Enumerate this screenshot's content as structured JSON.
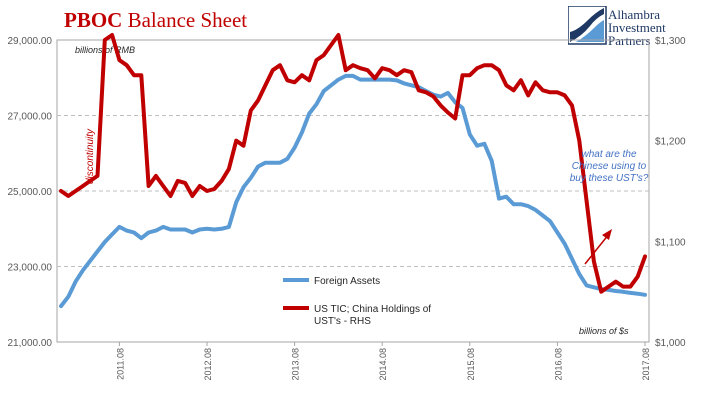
{
  "header": {
    "title_bold": "PBOC",
    "title_rest": " Balance Sheet",
    "logo_lines": [
      "Alhambra",
      "Investment",
      "Partners"
    ]
  },
  "colors": {
    "series_1": "#5b9bd5",
    "series_2": "#c00000",
    "grid": "#bfbfbf",
    "axis_text": "#595959",
    "annotation_blue": "#4472c4",
    "logo": "#1f3864"
  },
  "chart_data": {
    "type": "line",
    "x_labels": [
      "2011.08",
      "2012.08",
      "2013.08",
      "2014.08",
      "2015.08",
      "2016.08",
      "2017.08"
    ],
    "x_label_index": [
      8,
      20,
      32,
      44,
      56,
      68,
      80
    ],
    "left_axis": {
      "label": "billions of RMB",
      "ticks": [
        "21,000.00",
        "23,000.00",
        "25,000.00",
        "27,000.00",
        "29,000.00"
      ],
      "range": [
        21000,
        29000
      ]
    },
    "right_axis": {
      "label": "billions of $s",
      "ticks": [
        "$1,000",
        "$1,100",
        "$1,200",
        "$1,300"
      ],
      "range": [
        1000,
        1300
      ]
    },
    "grid": true,
    "legend_position": "bottom-center",
    "series": [
      {
        "name": "Foreign Assets",
        "axis": "left",
        "values": [
          21950,
          22200,
          22600,
          22900,
          23150,
          23400,
          23650,
          23850,
          24050,
          23950,
          23900,
          23750,
          23900,
          23950,
          24050,
          23980,
          23980,
          23980,
          23900,
          23980,
          24000,
          23980,
          24000,
          24050,
          24700,
          25100,
          25350,
          25650,
          25750,
          25750,
          25750,
          25850,
          26150,
          26550,
          27050,
          27300,
          27650,
          27800,
          27950,
          28050,
          28050,
          27950,
          27950,
          27950,
          27950,
          27950,
          27930,
          27850,
          27800,
          27750,
          27650,
          27550,
          27500,
          27600,
          27350,
          27200,
          26500,
          26200,
          26250,
          25800,
          24800,
          24850,
          24650,
          24650,
          24600,
          24500,
          24350,
          24200,
          23900,
          23600,
          23200,
          22800,
          22500,
          22450,
          22400,
          22380,
          22350,
          22330,
          22300,
          22280,
          22250
        ]
      },
      {
        "name": "US TIC; China Holdings of UST's - RHS",
        "axis": "right",
        "values": [
          1150,
          1145,
          1150,
          1155,
          1160,
          1165,
          1300,
          1305,
          1280,
          1275,
          1265,
          1265,
          1155,
          1165,
          1155,
          1145,
          1160,
          1158,
          1145,
          1155,
          1150,
          1152,
          1160,
          1172,
          1200,
          1195,
          1230,
          1240,
          1255,
          1270,
          1275,
          1260,
          1258,
          1265,
          1260,
          1280,
          1285,
          1295,
          1305,
          1270,
          1275,
          1272,
          1270,
          1262,
          1272,
          1270,
          1265,
          1270,
          1268,
          1250,
          1248,
          1244,
          1235,
          1228,
          1222,
          1265,
          1265,
          1272,
          1275,
          1275,
          1270,
          1255,
          1250,
          1260,
          1245,
          1258,
          1250,
          1248,
          1248,
          1245,
          1235,
          1200,
          1140,
          1080,
          1050,
          1055,
          1060,
          1055,
          1055,
          1065,
          1085
        ]
      }
    ],
    "annotations": [
      {
        "text": "discontinuity",
        "color": "series_2"
      },
      {
        "text": "what are the Chinese using to buy these UST's?",
        "lines": [
          "what are the",
          "Chinese using to",
          "buy these UST's?"
        ],
        "color": "annotation_blue"
      }
    ]
  }
}
